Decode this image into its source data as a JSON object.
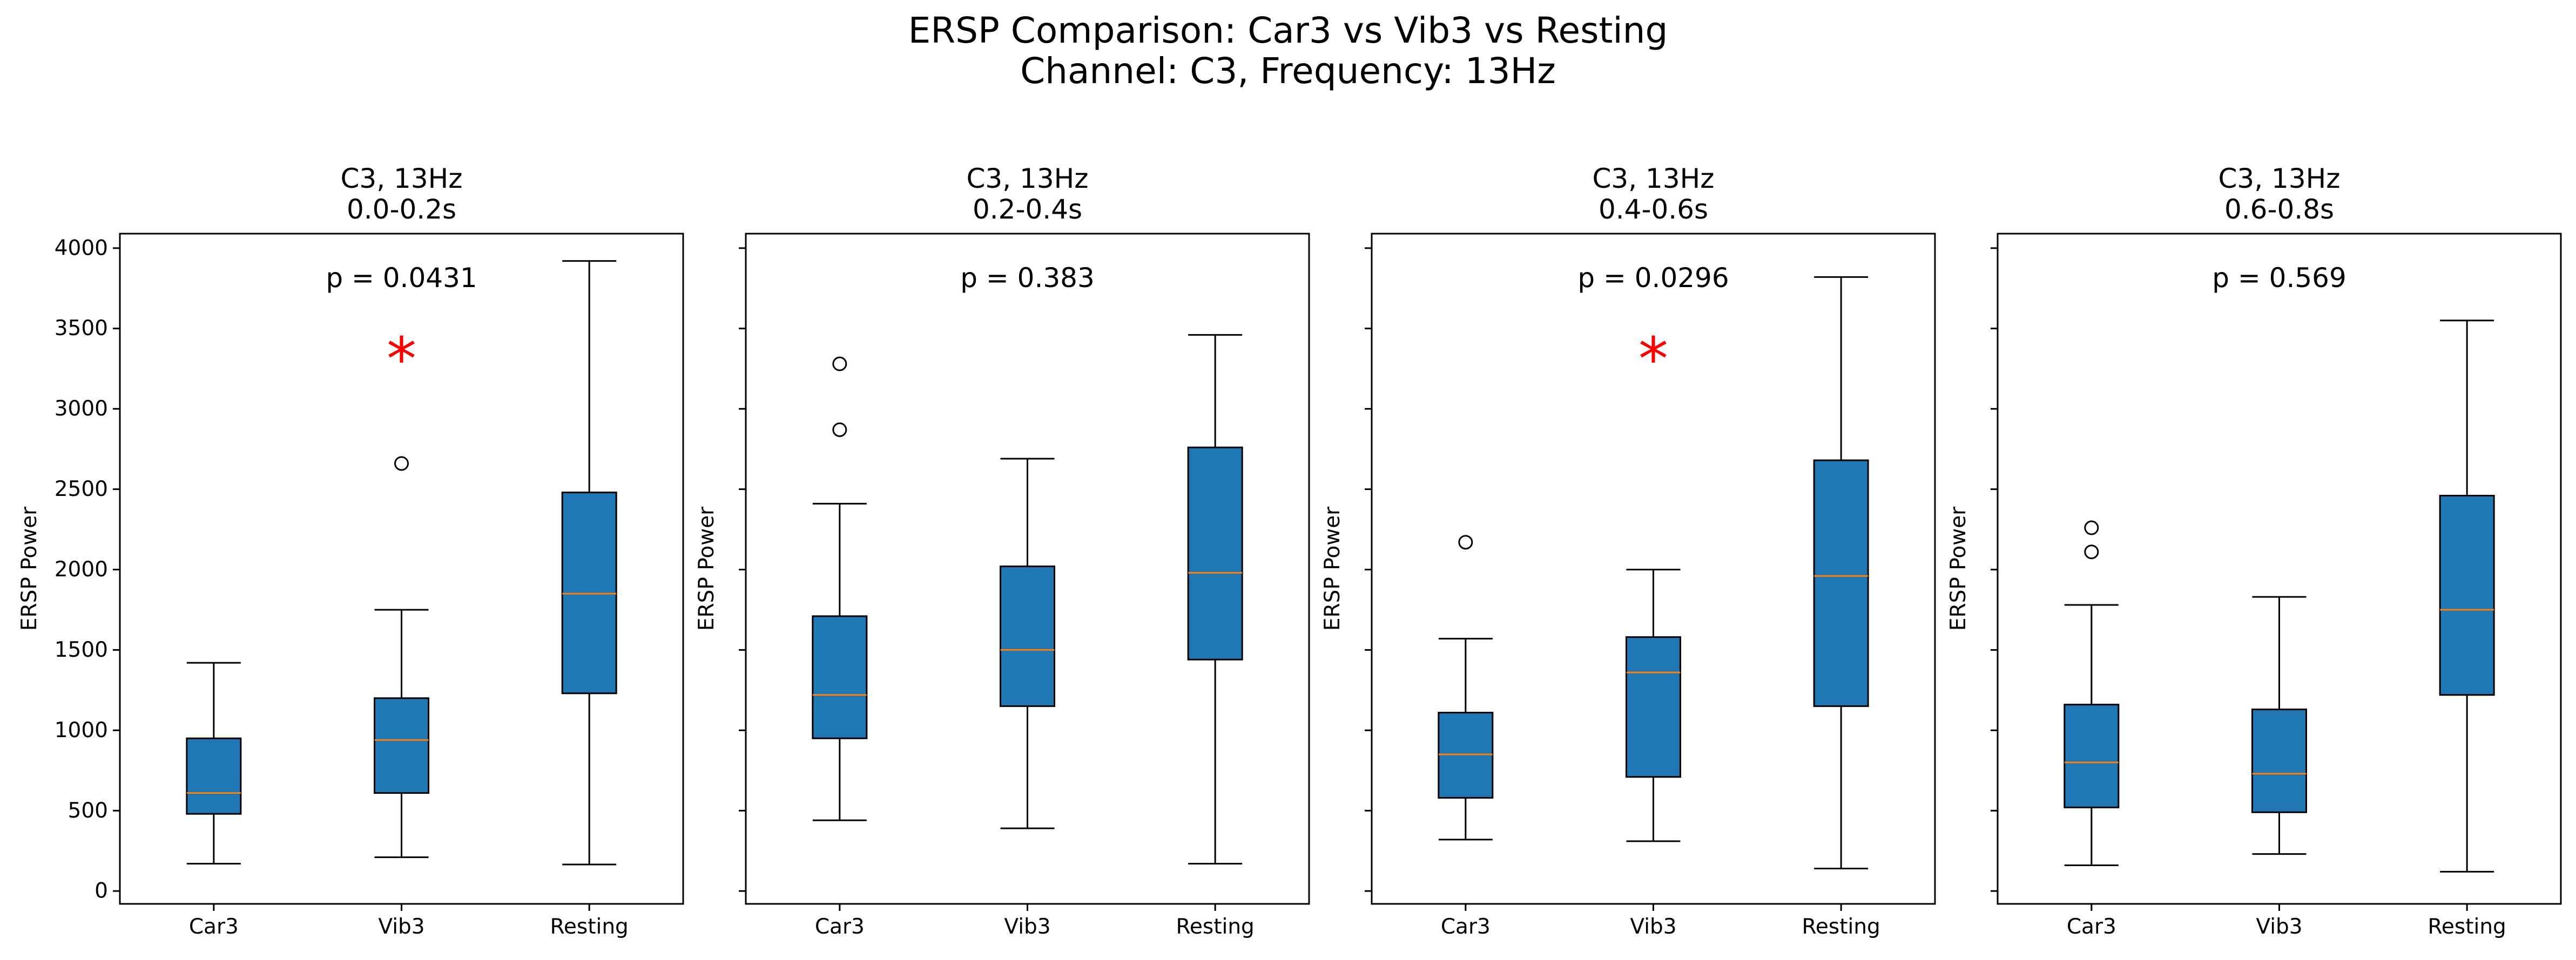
{
  "figure": {
    "title_line1": "ERSP Comparison: Car3 vs Vib3 vs Resting",
    "title_line2": "Channel: C3, Frequency: 13Hz"
  },
  "chart_data": [
    {
      "type": "box",
      "title_line1": "C3, 13Hz",
      "title_line2": "0.0-0.2s",
      "ylabel": "ERSP Power",
      "ylim": [
        -80,
        4090
      ],
      "yticks": [
        0,
        500,
        1000,
        1500,
        2000,
        2500,
        3000,
        3500,
        4000
      ],
      "show_ytick_labels": true,
      "categories": [
        "Car3",
        "Vib3",
        "Resting"
      ],
      "boxes": [
        {
          "whislo": 170,
          "q1": 480,
          "med": 610,
          "q3": 950,
          "whishi": 1420,
          "fliers": []
        },
        {
          "whislo": 210,
          "q1": 610,
          "med": 940,
          "q3": 1200,
          "whishi": 1750,
          "fliers": [
            2660
          ]
        },
        {
          "whislo": 165,
          "q1": 1230,
          "med": 1850,
          "q3": 2480,
          "whishi": 3920,
          "fliers": []
        }
      ],
      "p_label": "p = 0.0431",
      "significance_marker": "*",
      "marker_y": 3350,
      "box_color": "#1f77b4",
      "median_color": "#ff7f0e"
    },
    {
      "type": "box",
      "title_line1": "C3, 13Hz",
      "title_line2": "0.2-0.4s",
      "ylabel": "ERSP Power",
      "ylim": [
        -80,
        4090
      ],
      "yticks": [
        0,
        500,
        1000,
        1500,
        2000,
        2500,
        3000,
        3500,
        4000
      ],
      "show_ytick_labels": false,
      "categories": [
        "Car3",
        "Vib3",
        "Resting"
      ],
      "boxes": [
        {
          "whislo": 440,
          "q1": 950,
          "med": 1220,
          "q3": 1710,
          "whishi": 2410,
          "fliers": [
            2870,
            3280
          ]
        },
        {
          "whislo": 390,
          "q1": 1150,
          "med": 1500,
          "q3": 2020,
          "whishi": 2690,
          "fliers": []
        },
        {
          "whislo": 170,
          "q1": 1440,
          "med": 1980,
          "q3": 2760,
          "whishi": 3460,
          "fliers": []
        }
      ],
      "p_label": "p = 0.383",
      "significance_marker": "",
      "marker_y": null,
      "box_color": "#1f77b4",
      "median_color": "#ff7f0e"
    },
    {
      "type": "box",
      "title_line1": "C3, 13Hz",
      "title_line2": "0.4-0.6s",
      "ylabel": "ERSP Power",
      "ylim": [
        -80,
        4090
      ],
      "yticks": [
        0,
        500,
        1000,
        1500,
        2000,
        2500,
        3000,
        3500,
        4000
      ],
      "show_ytick_labels": false,
      "categories": [
        "Car3",
        "Vib3",
        "Resting"
      ],
      "boxes": [
        {
          "whislo": 320,
          "q1": 580,
          "med": 850,
          "q3": 1110,
          "whishi": 1570,
          "fliers": [
            2170
          ]
        },
        {
          "whislo": 310,
          "q1": 710,
          "med": 1360,
          "q3": 1580,
          "whishi": 2000,
          "fliers": []
        },
        {
          "whislo": 140,
          "q1": 1150,
          "med": 1960,
          "q3": 2680,
          "whishi": 3820,
          "fliers": []
        }
      ],
      "p_label": "p = 0.0296",
      "significance_marker": "*",
      "marker_y": 3350,
      "box_color": "#1f77b4",
      "median_color": "#ff7f0e"
    },
    {
      "type": "box",
      "title_line1": "C3, 13Hz",
      "title_line2": "0.6-0.8s",
      "ylabel": "ERSP Power",
      "ylim": [
        -80,
        4090
      ],
      "yticks": [
        0,
        500,
        1000,
        1500,
        2000,
        2500,
        3000,
        3500,
        4000
      ],
      "show_ytick_labels": false,
      "categories": [
        "Car3",
        "Vib3",
        "Resting"
      ],
      "boxes": [
        {
          "whislo": 160,
          "q1": 520,
          "med": 800,
          "q3": 1160,
          "whishi": 1780,
          "fliers": [
            2110,
            2260
          ]
        },
        {
          "whislo": 230,
          "q1": 490,
          "med": 730,
          "q3": 1130,
          "whishi": 1830,
          "fliers": []
        },
        {
          "whislo": 120,
          "q1": 1220,
          "med": 1750,
          "q3": 2460,
          "whishi": 3550,
          "fliers": []
        }
      ],
      "p_label": "p = 0.569",
      "significance_marker": "",
      "marker_y": null,
      "box_color": "#1f77b4",
      "median_color": "#ff7f0e"
    }
  ]
}
